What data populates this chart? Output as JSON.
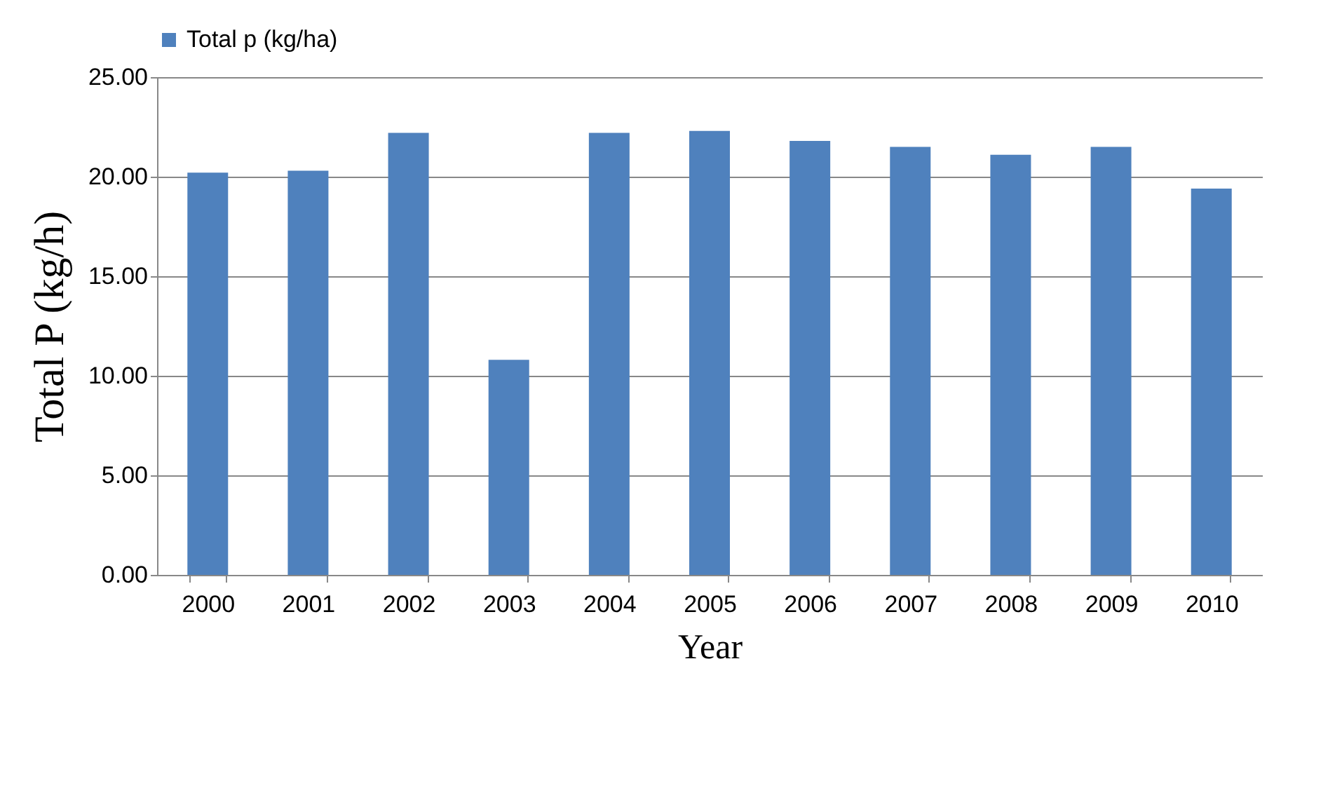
{
  "chart_data": {
    "type": "bar",
    "xlabel": "Year",
    "ylabel": "Total P (kg/h)",
    "categories": [
      "2000",
      "2001",
      "2002",
      "2003",
      "2004",
      "2005",
      "2006",
      "2007",
      "2008",
      "2009",
      "2010"
    ],
    "series": [
      {
        "name": "Total p (kg/ha)",
        "color": "#4f81bd",
        "values": [
          20.2,
          20.3,
          22.2,
          10.8,
          22.2,
          22.3,
          21.8,
          21.5,
          21.1,
          21.5,
          19.4
        ]
      }
    ],
    "ylim": [
      0,
      25
    ],
    "yticks": [
      {
        "value": 0,
        "label": "0.00"
      },
      {
        "value": 5,
        "label": "5.00"
      },
      {
        "value": 10,
        "label": "10.00"
      },
      {
        "value": 15,
        "label": "15.00"
      },
      {
        "value": 20,
        "label": "20.00"
      },
      {
        "value": 25,
        "label": "25.00"
      }
    ],
    "grid": "y",
    "legend": "top"
  }
}
